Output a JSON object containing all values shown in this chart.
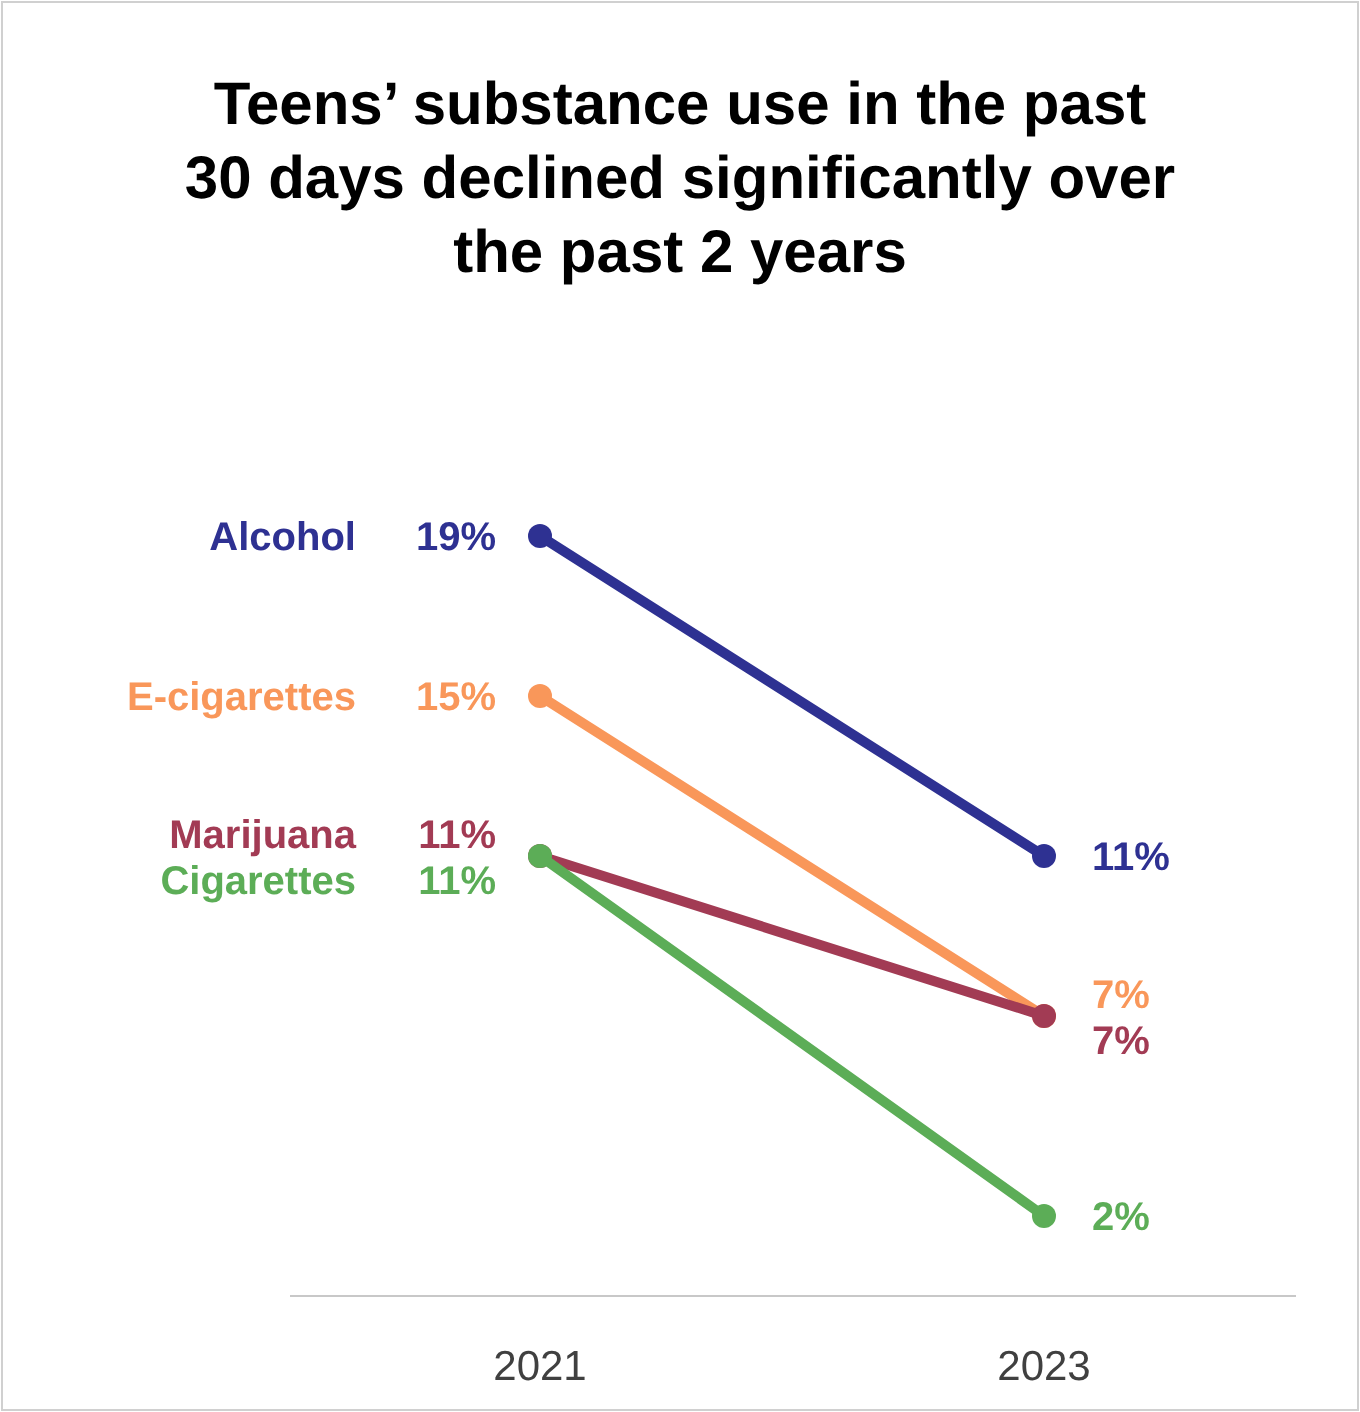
{
  "chart_data": {
    "type": "line",
    "title": "Teens’ substance use in the past 30 days declined significantly over the past 2 years",
    "categories": [
      "2021",
      "2023"
    ],
    "series": [
      {
        "name": "Alcohol",
        "color": "#2e3192",
        "values": [
          19,
          11
        ],
        "value_labels": [
          "19%",
          "11%"
        ]
      },
      {
        "name": "E-cigarettes",
        "color": "#f9975a",
        "values": [
          15,
          7
        ],
        "value_labels": [
          "15%",
          "7%"
        ]
      },
      {
        "name": "Marijuana",
        "color": "#a23b54",
        "values": [
          11,
          7
        ],
        "value_labels": [
          "11%",
          "7%"
        ]
      },
      {
        "name": "Cigarettes",
        "color": "#5cad57",
        "values": [
          11,
          2
        ],
        "value_labels": [
          "11%",
          "2%"
        ]
      }
    ],
    "marker": "circle"
  }
}
